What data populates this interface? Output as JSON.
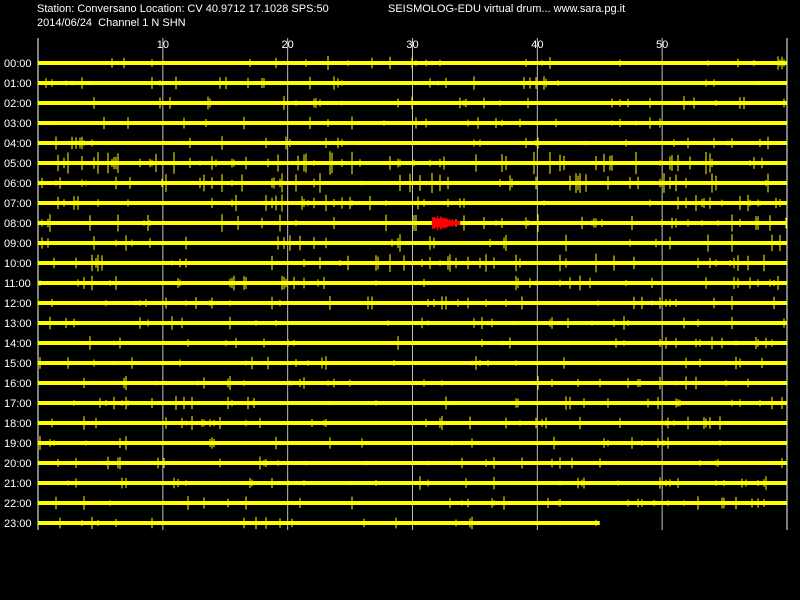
{
  "header": {
    "station_line": "Station: Conversano Location: CV 40.9712 17.1028 SPS:50",
    "date_channel_line": "2014/06/24  Channel 1 N SHN",
    "title": "SEISMOLOG-EDU virtual drum... www.sara.pg.it"
  },
  "colors": {
    "background": "#000000",
    "trace": "#ffff00",
    "event": "#ff0000",
    "grid": "#c0c0c0",
    "text": "#ffffff"
  },
  "chart_data": {
    "type": "helicorder",
    "xlabel": "",
    "ylabel": "",
    "xlim": [
      0,
      60
    ],
    "x_ticks": [
      10,
      20,
      30,
      40,
      50
    ],
    "grid": true,
    "rows": [
      "00:00",
      "01:00",
      "02:00",
      "03:00",
      "04:00",
      "05:00",
      "06:00",
      "07:00",
      "08:00",
      "09:00",
      "10:00",
      "11:00",
      "12:00",
      "13:00",
      "14:00",
      "15:00",
      "16:00",
      "17:00",
      "18:00",
      "19:00",
      "20:00",
      "21:00",
      "22:00",
      "23:00"
    ],
    "row_end_minute": [
      60,
      60,
      60,
      60,
      60,
      60,
      60,
      60,
      60,
      60,
      60,
      60,
      60,
      60,
      60,
      60,
      60,
      60,
      60,
      60,
      60,
      60,
      60,
      45
    ],
    "noise_level": [
      1,
      1,
      1,
      1,
      1,
      2,
      1.6,
      1.3,
      1.4,
      1.4,
      1.5,
      1.1,
      1,
      1,
      1,
      1,
      1,
      1,
      1,
      1,
      1,
      1,
      1,
      1
    ],
    "events": [
      {
        "row": "08:00",
        "start_minute": 31.6,
        "end_minute": 33.8,
        "color": "event"
      }
    ]
  }
}
